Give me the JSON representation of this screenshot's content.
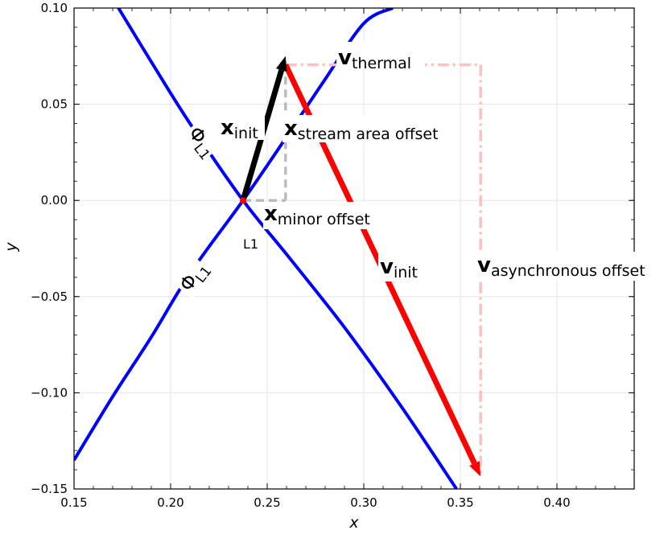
{
  "chart_data": {
    "type": "line",
    "title": "",
    "xlabel": "x",
    "ylabel": "y",
    "xlim": [
      0.15,
      0.44
    ],
    "ylim": [
      -0.15,
      0.1
    ],
    "grid": true,
    "x_ticks": [
      0.15,
      0.2,
      0.25,
      0.3,
      0.35,
      0.4
    ],
    "x_tick_labels": [
      "0.15",
      "0.20",
      "0.25",
      "0.30",
      "0.35",
      "0.40"
    ],
    "y_ticks": [
      0.1,
      0.05,
      0.0,
      -0.05,
      -0.1,
      -0.15
    ],
    "y_tick_labels": [
      "0.10",
      "0.05",
      "0.00",
      "−0.05",
      "−0.10",
      "−0.15"
    ],
    "L1_point": {
      "x": 0.2375,
      "y": 0.0,
      "label": "L1",
      "color": "#ff0000"
    },
    "series": [
      {
        "kind": "curve",
        "color": "#0000ff",
        "x": [
          0.173,
          0.19,
          0.21,
          0.2375,
          0.26,
          0.29,
          0.32,
          0.348
        ],
        "y": [
          0.1,
          0.072,
          0.04,
          0.0,
          -0.028,
          -0.066,
          -0.108,
          -0.15
        ]
      },
      {
        "kind": "curve",
        "color": "#0000ff",
        "x": [
          0.15,
          0.17,
          0.19,
          0.21,
          0.2375,
          0.26,
          0.28,
          0.3,
          0.315
        ],
        "y": [
          -0.135,
          -0.102,
          -0.071,
          -0.038,
          0.0,
          0.033,
          0.063,
          0.092,
          0.1
        ]
      }
    ],
    "vectors": [
      {
        "name": "x_init",
        "kind": "arrow",
        "color": "#000000",
        "style": "solid",
        "x0": 0.2375,
        "y0": 0.0,
        "x1": 0.2595,
        "y1": 0.075
      },
      {
        "name": "v_init",
        "kind": "arrow",
        "color": "#ff0000",
        "style": "solid",
        "x0": 0.2595,
        "y0": 0.0705,
        "x1": 0.3605,
        "y1": -0.1435
      },
      {
        "name": "x_minor_offset",
        "kind": "line",
        "color": "#bbbbbb",
        "style": "dashed",
        "x0": 0.2375,
        "y0": 0.0,
        "x1": 0.2595,
        "y1": 0.0
      },
      {
        "name": "x_stream_area_offset",
        "kind": "line",
        "color": "#bbbbbb",
        "style": "dashed",
        "x0": 0.2595,
        "y0": 0.0,
        "x1": 0.2595,
        "y1": 0.0705
      },
      {
        "name": "v_thermal",
        "kind": "line",
        "color": "#ffc0c0",
        "style": "dashdot",
        "x0": 0.2595,
        "y0": 0.0705,
        "x1": 0.3605,
        "y1": 0.0705
      },
      {
        "name": "v_asynchronous_offset",
        "kind": "line",
        "color": "#ffc0c0",
        "style": "dashdot",
        "x0": 0.3605,
        "y0": 0.0705,
        "x1": 0.3605,
        "y1": -0.1435
      }
    ],
    "annotations": {
      "v_thermal": {
        "main": "v",
        "sub": "thermal"
      },
      "x_init": {
        "main": "x",
        "sub": "init"
      },
      "x_stream_area_offset": {
        "main": "x",
        "sub": "stream area offset"
      },
      "x_minor_offset": {
        "main": "x",
        "sub": "minor offset"
      },
      "v_init": {
        "main": "v",
        "sub": "init"
      },
      "v_asynchronous_offset": {
        "main": "v",
        "sub": "asynchronous offset"
      },
      "phi_upper": {
        "main": "Φ",
        "sub": "L1"
      },
      "phi_lower": {
        "main": "Φ",
        "sub": "L1"
      },
      "L1": "L1"
    }
  }
}
